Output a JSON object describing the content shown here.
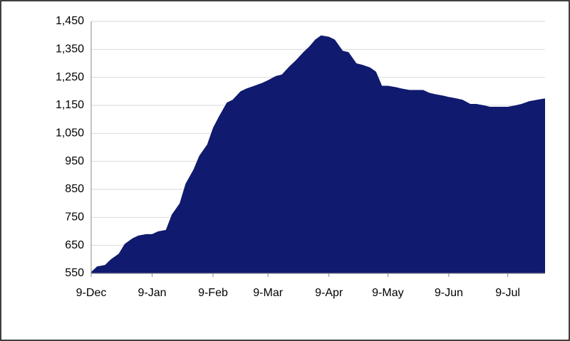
{
  "chart_data": {
    "type": "area",
    "color": "#101a6e",
    "grid": true,
    "x": [
      "9-Dec",
      "12-Dec",
      "16-Dec",
      "19-Dec",
      "23-Dec",
      "26-Dec",
      "30-Dec",
      "2-Jan",
      "6-Jan",
      "9-Jan",
      "12-Jan",
      "16-Jan",
      "19-Jan",
      "23-Jan",
      "26-Jan",
      "30-Jan",
      "2-Feb",
      "6-Feb",
      "9-Feb",
      "12-Feb",
      "16-Feb",
      "19-Feb",
      "23-Feb",
      "26-Feb",
      "2-Mar",
      "6-Mar",
      "9-Mar",
      "13-Mar",
      "16-Mar",
      "20-Mar",
      "23-Mar",
      "27-Mar",
      "30-Mar",
      "2-Apr",
      "5-Apr",
      "9-Apr",
      "12-Apr",
      "16-Apr",
      "19-Apr",
      "23-Apr",
      "26-Apr",
      "30-Apr",
      "3-May",
      "6-May",
      "9-May",
      "13-May",
      "16-May",
      "20-May",
      "23-May",
      "27-May",
      "30-May",
      "2-Jun",
      "6-Jun",
      "9-Jun",
      "13-Jun",
      "16-Jun",
      "20-Jun",
      "23-Jun",
      "27-Jun",
      "30-Jun",
      "4-Jul",
      "7-Jul",
      "9-Jul",
      "13-Jul",
      "16-Jul",
      "20-Jul",
      "24-Jul",
      "28-Jul"
    ],
    "values": [
      555,
      575,
      580,
      600,
      620,
      655,
      675,
      685,
      690,
      690,
      700,
      705,
      760,
      800,
      870,
      920,
      970,
      1010,
      1070,
      1110,
      1160,
      1170,
      1200,
      1210,
      1220,
      1230,
      1240,
      1255,
      1260,
      1290,
      1310,
      1340,
      1360,
      1385,
      1400,
      1395,
      1385,
      1345,
      1340,
      1300,
      1295,
      1285,
      1270,
      1220,
      1220,
      1215,
      1210,
      1205,
      1205,
      1205,
      1195,
      1190,
      1185,
      1180,
      1175,
      1170,
      1155,
      1155,
      1150,
      1145,
      1145,
      1145,
      1145,
      1150,
      1155,
      1165,
      1170,
      1175
    ],
    "xticks": [
      "9-Dec",
      "9-Jan",
      "9-Feb",
      "9-Mar",
      "9-Apr",
      "9-May",
      "9-Jun",
      "9-Jul"
    ],
    "ylim": [
      550,
      1450
    ],
    "yticks": [
      550,
      650,
      750,
      850,
      950,
      {
        "value": 1050,
        "label": "1,050"
      },
      {
        "value": 1150,
        "label": "1,150"
      },
      {
        "value": 1250,
        "label": "1,250"
      },
      {
        "value": 1350,
        "label": "1,350"
      },
      {
        "value": 1450,
        "label": "1,450"
      }
    ]
  }
}
